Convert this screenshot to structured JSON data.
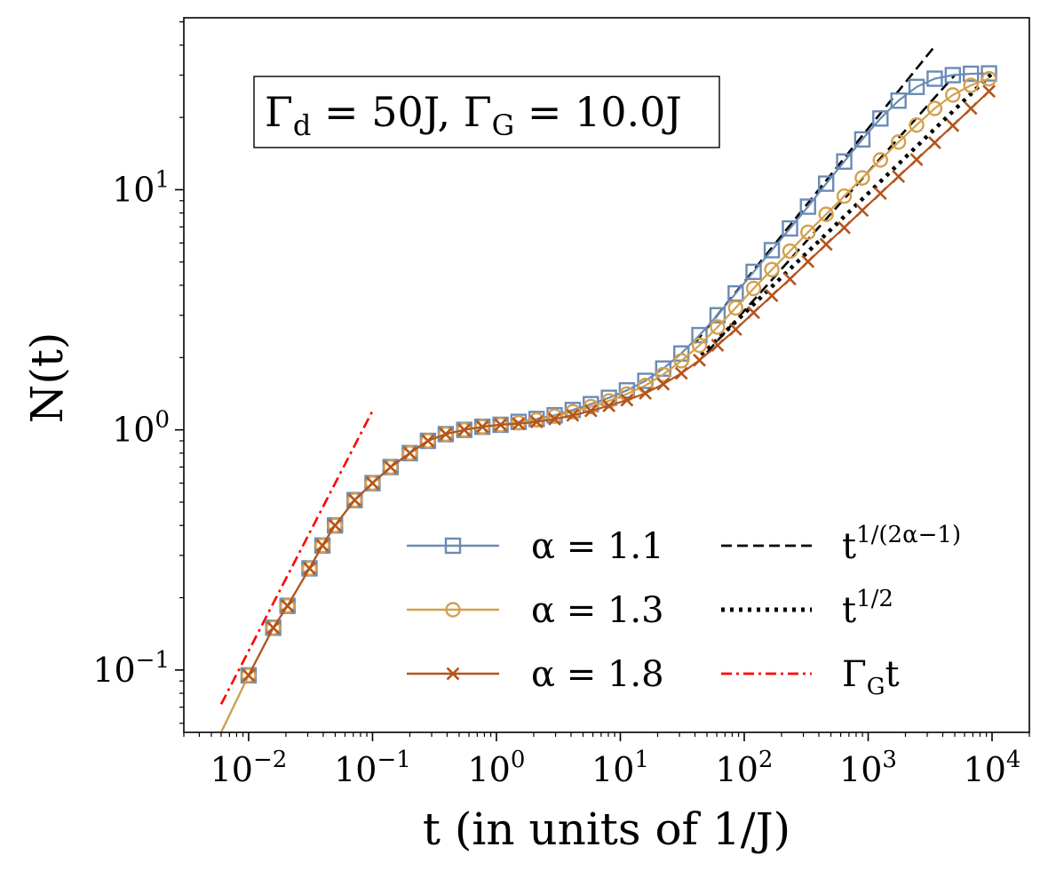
{
  "chart_data": {
    "type": "line",
    "scale": "log-log",
    "xlabel": "t (in units of 1/J)",
    "ylabel": "N(t)",
    "xlim": [
      0.003,
      20000
    ],
    "ylim": [
      0.055,
      52
    ],
    "x_ticks": [
      {
        "value": 0.01,
        "base": "10",
        "exp": "−2"
      },
      {
        "value": 0.1,
        "base": "10",
        "exp": "−1"
      },
      {
        "value": 1,
        "base": "10",
        "exp": "0"
      },
      {
        "value": 10,
        "base": "10",
        "exp": "1"
      },
      {
        "value": 100,
        "base": "10",
        "exp": "2"
      },
      {
        "value": 1000,
        "base": "10",
        "exp": "3"
      },
      {
        "value": 10000,
        "base": "10",
        "exp": "4"
      }
    ],
    "y_ticks": [
      {
        "value": 0.1,
        "base": "10",
        "exp": "−1"
      },
      {
        "value": 1,
        "base": "10",
        "exp": "0"
      },
      {
        "value": 10,
        "base": "10",
        "exp": "1"
      }
    ],
    "annotation": {
      "parts": [
        "Γ",
        "d",
        " = 50J, Γ",
        "G",
        " = 10.0J"
      ]
    },
    "series": [
      {
        "name": "α = 1.1",
        "label_main": "α = 1.1",
        "color": "#6b8bb5",
        "marker": "square",
        "x": [
          0.006,
          0.01,
          0.0158,
          0.0206,
          0.031,
          0.0394,
          0.0498,
          0.0717,
          0.1,
          0.14,
          0.2,
          0.28,
          0.39,
          0.55,
          0.77,
          1.08,
          1.51,
          2.11,
          2.95,
          4.13,
          5.78,
          8.09,
          11.3,
          15.9,
          22.2,
          31.1,
          43.5,
          60.9,
          85.3,
          119,
          167,
          234,
          327,
          458,
          641,
          897,
          1256,
          1758,
          2461,
          3445,
          4823,
          6752,
          9453
        ],
        "y": [
          0.055,
          0.095,
          0.15,
          0.185,
          0.265,
          0.33,
          0.4,
          0.51,
          0.6,
          0.7,
          0.8,
          0.9,
          0.96,
          1.0,
          1.03,
          1.05,
          1.08,
          1.11,
          1.15,
          1.21,
          1.28,
          1.36,
          1.46,
          1.6,
          1.8,
          2.08,
          2.48,
          3.0,
          3.7,
          4.55,
          5.6,
          6.9,
          8.5,
          10.6,
          13.1,
          16.2,
          19.8,
          23.5,
          26.8,
          29.0,
          30.0,
          30.4,
          30.5
        ],
        "markers_from": 1
      },
      {
        "name": "α = 1.3",
        "label_main": "α = 1.3",
        "color": "#d4a04d",
        "marker": "circle",
        "x": [
          0.006,
          0.01,
          0.0158,
          0.0206,
          0.031,
          0.0394,
          0.0498,
          0.0717,
          0.1,
          0.14,
          0.2,
          0.28,
          0.39,
          0.55,
          0.77,
          1.08,
          1.51,
          2.11,
          2.95,
          4.13,
          5.78,
          8.09,
          11.3,
          15.9,
          22.2,
          31.1,
          43.5,
          60.9,
          85.3,
          119,
          167,
          234,
          327,
          458,
          641,
          897,
          1256,
          1758,
          2461,
          3445,
          4823,
          6752,
          9453
        ],
        "y": [
          0.055,
          0.095,
          0.15,
          0.185,
          0.265,
          0.33,
          0.4,
          0.51,
          0.6,
          0.7,
          0.8,
          0.9,
          0.96,
          1.0,
          1.03,
          1.05,
          1.07,
          1.1,
          1.14,
          1.19,
          1.25,
          1.32,
          1.41,
          1.53,
          1.7,
          1.94,
          2.25,
          2.68,
          3.22,
          3.88,
          4.65,
          5.55,
          6.65,
          7.9,
          9.4,
          11.2,
          13.3,
          15.8,
          18.6,
          21.8,
          24.8,
          27.2,
          29.0
        ],
        "markers_from": 1
      },
      {
        "name": "α = 1.8",
        "label_main": "α = 1.8",
        "color": "#b5541c",
        "marker": "cross",
        "x": [
          0.01,
          0.0158,
          0.0206,
          0.031,
          0.0394,
          0.0498,
          0.0717,
          0.1,
          0.14,
          0.2,
          0.28,
          0.39,
          0.55,
          0.77,
          1.08,
          1.51,
          2.11,
          2.95,
          4.13,
          5.78,
          8.09,
          11.3,
          15.9,
          22.2,
          31.1,
          43.5,
          60.9,
          85.3,
          119,
          167,
          234,
          327,
          458,
          641,
          897,
          1256,
          1758,
          2461,
          3445,
          4823,
          6752,
          9453
        ],
        "y": [
          0.095,
          0.15,
          0.185,
          0.265,
          0.33,
          0.4,
          0.51,
          0.6,
          0.7,
          0.8,
          0.9,
          0.96,
          1.0,
          1.03,
          1.05,
          1.06,
          1.08,
          1.11,
          1.15,
          1.2,
          1.26,
          1.33,
          1.42,
          1.55,
          1.72,
          1.95,
          2.25,
          2.62,
          3.08,
          3.62,
          4.25,
          5.02,
          5.92,
          6.95,
          8.2,
          9.65,
          11.35,
          13.35,
          15.7,
          18.5,
          21.8,
          25.7
        ],
        "markers_from": 0
      }
    ],
    "reference_lines": [
      {
        "name": "t^{1/(2α−1)}",
        "label_main": "t",
        "label_sup": "1/(2α−1)",
        "style": "dashed",
        "color": "#000000",
        "segments": [
          {
            "x": [
              40,
              3500
            ],
            "y": [
              2.3,
              40
            ]
          },
          {
            "x": [
              50,
              5000
            ],
            "y": [
              2.1,
              30
            ]
          }
        ]
      },
      {
        "name": "t^{1/2}",
        "label_main": "t",
        "label_sup": "1/2",
        "style": "dotted",
        "color": "#000000",
        "segments": [
          {
            "x": [
              45,
              10000
            ],
            "y": [
              2.05,
              30.5
            ]
          }
        ]
      },
      {
        "name": "Γ_G t",
        "label_main": "Γ",
        "label_sub": "G",
        "label_tail": "t",
        "style": "dashdot",
        "color": "#ff0000",
        "segments": [
          {
            "x": [
              0.006,
              0.1
            ],
            "y": [
              0.072,
              1.2
            ]
          }
        ]
      }
    ],
    "legend_position": "lower-right",
    "grid": false
  }
}
